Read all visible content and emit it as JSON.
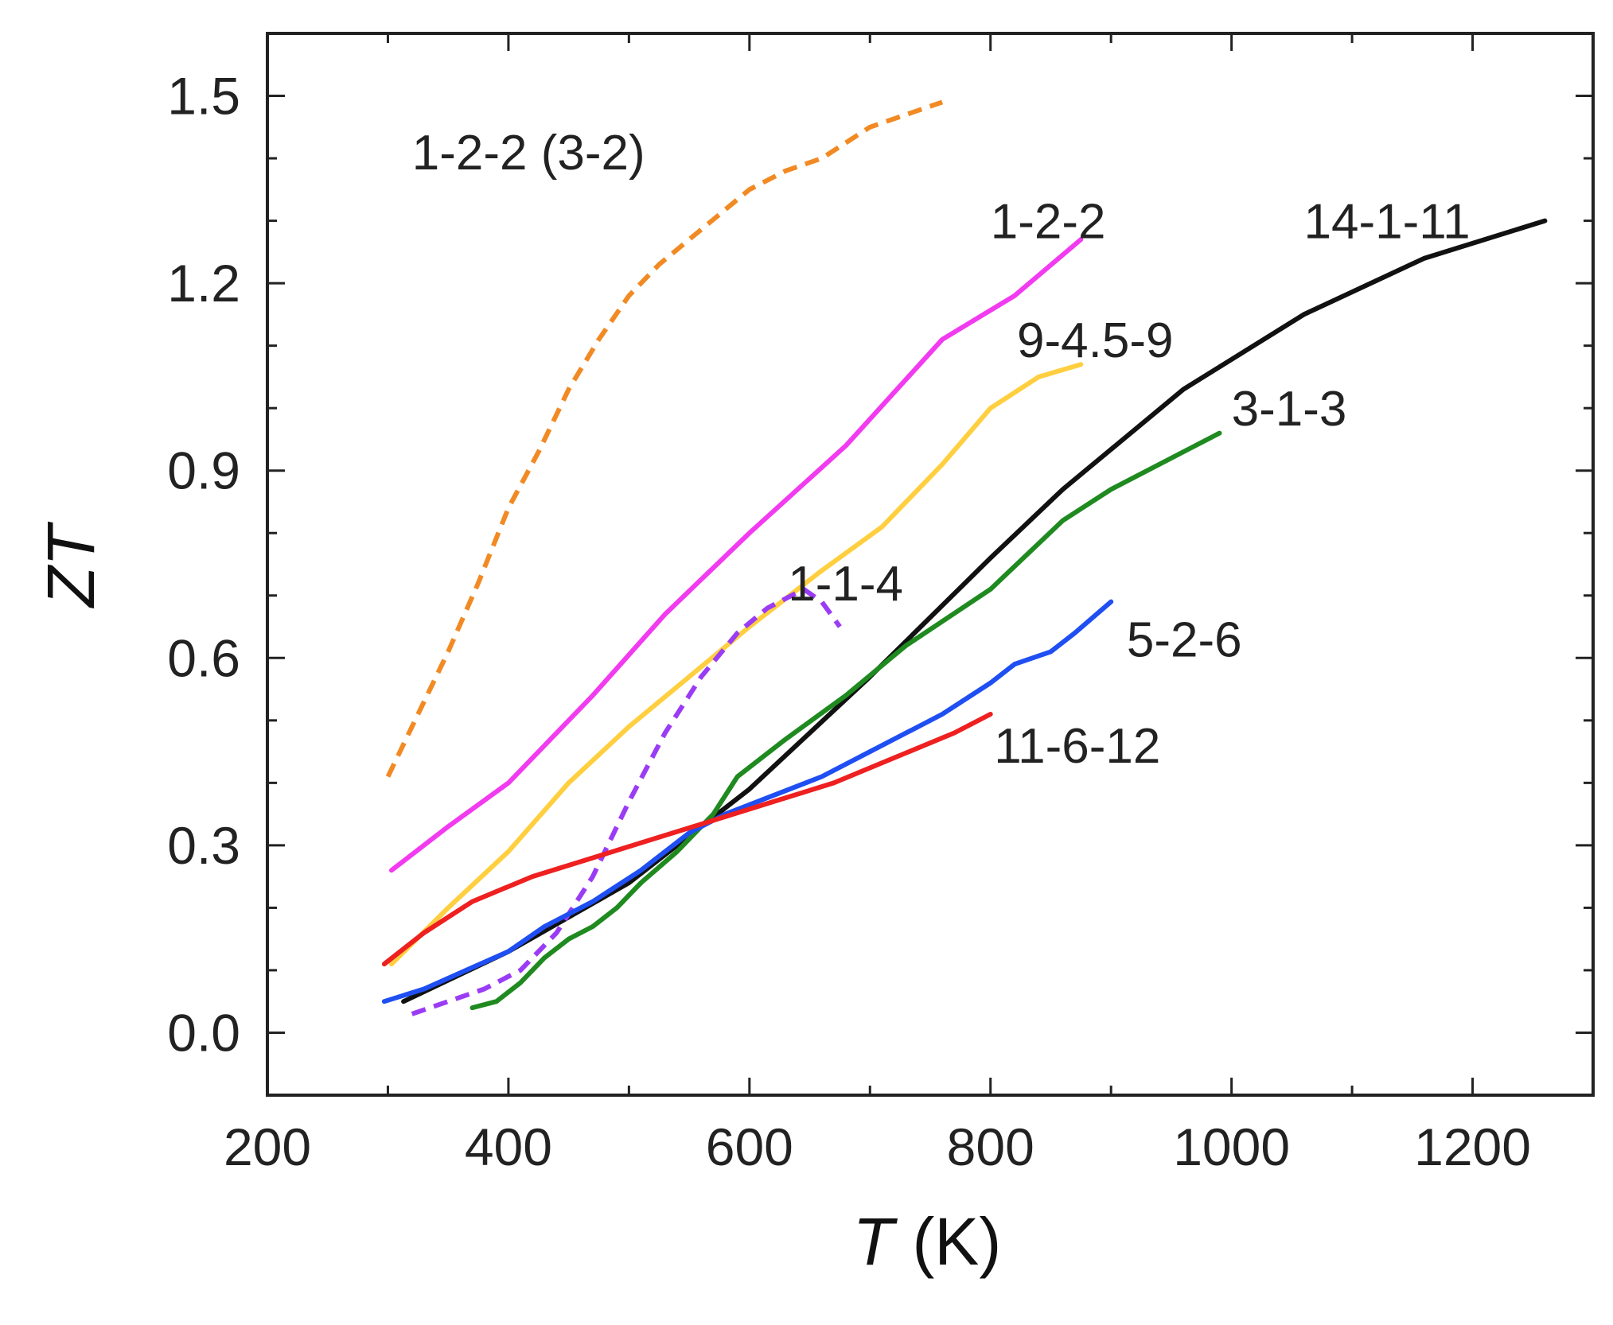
{
  "chart_data": {
    "type": "line",
    "title": "",
    "xlabel_var": "T",
    "xlabel_unit": " (K)",
    "ylabel_var": "ZT",
    "xlim": [
      200,
      1300
    ],
    "ylim": [
      -0.1,
      1.6
    ],
    "x_ticks": [
      "200",
      "400",
      "600",
      "800",
      "1000",
      "1200"
    ],
    "x_tick_values": [
      200,
      400,
      600,
      800,
      1000,
      1200
    ],
    "y_ticks": [
      "0.0",
      "0.3",
      "0.6",
      "0.9",
      "1.2",
      "1.5"
    ],
    "y_tick_values": [
      0.0,
      0.3,
      0.6,
      0.9,
      1.2,
      1.5
    ],
    "grid": false,
    "series": [
      {
        "name": "1-2-2 (3-2)",
        "color": "#f28a24",
        "dashed": true,
        "label_anchor": [
          320,
          1.41
        ],
        "points": [
          [
            300,
            0.41
          ],
          [
            325,
            0.51
          ],
          [
            350,
            0.61
          ],
          [
            375,
            0.72
          ],
          [
            400,
            0.84
          ],
          [
            425,
            0.93
          ],
          [
            450,
            1.03
          ],
          [
            475,
            1.11
          ],
          [
            500,
            1.18
          ],
          [
            525,
            1.23
          ],
          [
            550,
            1.27
          ],
          [
            575,
            1.31
          ],
          [
            600,
            1.35
          ],
          [
            630,
            1.38
          ],
          [
            660,
            1.4
          ],
          [
            700,
            1.45
          ],
          [
            730,
            1.47
          ],
          [
            760,
            1.49
          ]
        ]
      },
      {
        "name": "1-2-2",
        "color": "#f23bf0",
        "dashed": false,
        "label_anchor": [
          800,
          1.3
        ],
        "points": [
          [
            303,
            0.26
          ],
          [
            350,
            0.33
          ],
          [
            400,
            0.4
          ],
          [
            470,
            0.54
          ],
          [
            530,
            0.67
          ],
          [
            600,
            0.8
          ],
          [
            680,
            0.94
          ],
          [
            760,
            1.11
          ],
          [
            820,
            1.18
          ],
          [
            875,
            1.27
          ]
        ]
      },
      {
        "name": "9-4.5-9",
        "color": "#ffcf3f",
        "dashed": false,
        "label_anchor": [
          822,
          1.11
        ],
        "points": [
          [
            303,
            0.11
          ],
          [
            350,
            0.2
          ],
          [
            400,
            0.29
          ],
          [
            450,
            0.4
          ],
          [
            500,
            0.49
          ],
          [
            550,
            0.57
          ],
          [
            600,
            0.65
          ],
          [
            660,
            0.74
          ],
          [
            710,
            0.81
          ],
          [
            760,
            0.91
          ],
          [
            800,
            1.0
          ],
          [
            840,
            1.05
          ],
          [
            875,
            1.07
          ]
        ]
      },
      {
        "name": "14-1-11",
        "color": "#111111",
        "dashed": false,
        "label_anchor": [
          1060,
          1.3
        ],
        "points": [
          [
            313,
            0.05
          ],
          [
            400,
            0.13
          ],
          [
            500,
            0.24
          ],
          [
            600,
            0.39
          ],
          [
            700,
            0.57
          ],
          [
            800,
            0.76
          ],
          [
            860,
            0.87
          ],
          [
            960,
            1.03
          ],
          [
            1060,
            1.15
          ],
          [
            1160,
            1.24
          ],
          [
            1260,
            1.3
          ]
        ]
      },
      {
        "name": "3-1-3",
        "color": "#1f8a1f",
        "dashed": false,
        "label_anchor": [
          1000,
          1.0
        ],
        "points": [
          [
            370,
            0.04
          ],
          [
            390,
            0.05
          ],
          [
            410,
            0.08
          ],
          [
            430,
            0.12
          ],
          [
            450,
            0.15
          ],
          [
            470,
            0.17
          ],
          [
            490,
            0.2
          ],
          [
            510,
            0.24
          ],
          [
            540,
            0.29
          ],
          [
            570,
            0.35
          ],
          [
            590,
            0.41
          ],
          [
            630,
            0.47
          ],
          [
            680,
            0.54
          ],
          [
            730,
            0.62
          ],
          [
            800,
            0.71
          ],
          [
            860,
            0.82
          ],
          [
            900,
            0.87
          ],
          [
            960,
            0.93
          ],
          [
            990,
            0.96
          ]
        ]
      },
      {
        "name": "1-1-4",
        "color": "#9b3cf5",
        "dashed": true,
        "label_anchor": [
          632,
          0.72
        ],
        "points": [
          [
            320,
            0.03
          ],
          [
            350,
            0.05
          ],
          [
            380,
            0.07
          ],
          [
            410,
            0.1
          ],
          [
            440,
            0.16
          ],
          [
            470,
            0.25
          ],
          [
            500,
            0.37
          ],
          [
            530,
            0.48
          ],
          [
            560,
            0.57
          ],
          [
            590,
            0.64
          ],
          [
            615,
            0.68
          ],
          [
            645,
            0.71
          ],
          [
            660,
            0.69
          ],
          [
            675,
            0.65
          ]
        ]
      },
      {
        "name": "5-2-6",
        "color": "#1f4ff2",
        "dashed": false,
        "label_anchor": [
          913,
          0.63
        ],
        "points": [
          [
            297,
            0.05
          ],
          [
            330,
            0.07
          ],
          [
            365,
            0.1
          ],
          [
            400,
            0.13
          ],
          [
            430,
            0.17
          ],
          [
            470,
            0.21
          ],
          [
            510,
            0.26
          ],
          [
            550,
            0.32
          ],
          [
            580,
            0.35
          ],
          [
            620,
            0.38
          ],
          [
            660,
            0.41
          ],
          [
            700,
            0.45
          ],
          [
            760,
            0.51
          ],
          [
            800,
            0.56
          ],
          [
            820,
            0.59
          ],
          [
            850,
            0.61
          ],
          [
            870,
            0.64
          ],
          [
            900,
            0.69
          ]
        ]
      },
      {
        "name": "11-6-12",
        "color": "#ee2020",
        "dashed": false,
        "label_anchor": [
          803,
          0.46
        ],
        "points": [
          [
            297,
            0.11
          ],
          [
            330,
            0.16
          ],
          [
            370,
            0.21
          ],
          [
            420,
            0.25
          ],
          [
            470,
            0.28
          ],
          [
            520,
            0.31
          ],
          [
            570,
            0.34
          ],
          [
            620,
            0.37
          ],
          [
            670,
            0.4
          ],
          [
            720,
            0.44
          ],
          [
            770,
            0.48
          ],
          [
            800,
            0.51
          ]
        ]
      }
    ]
  }
}
